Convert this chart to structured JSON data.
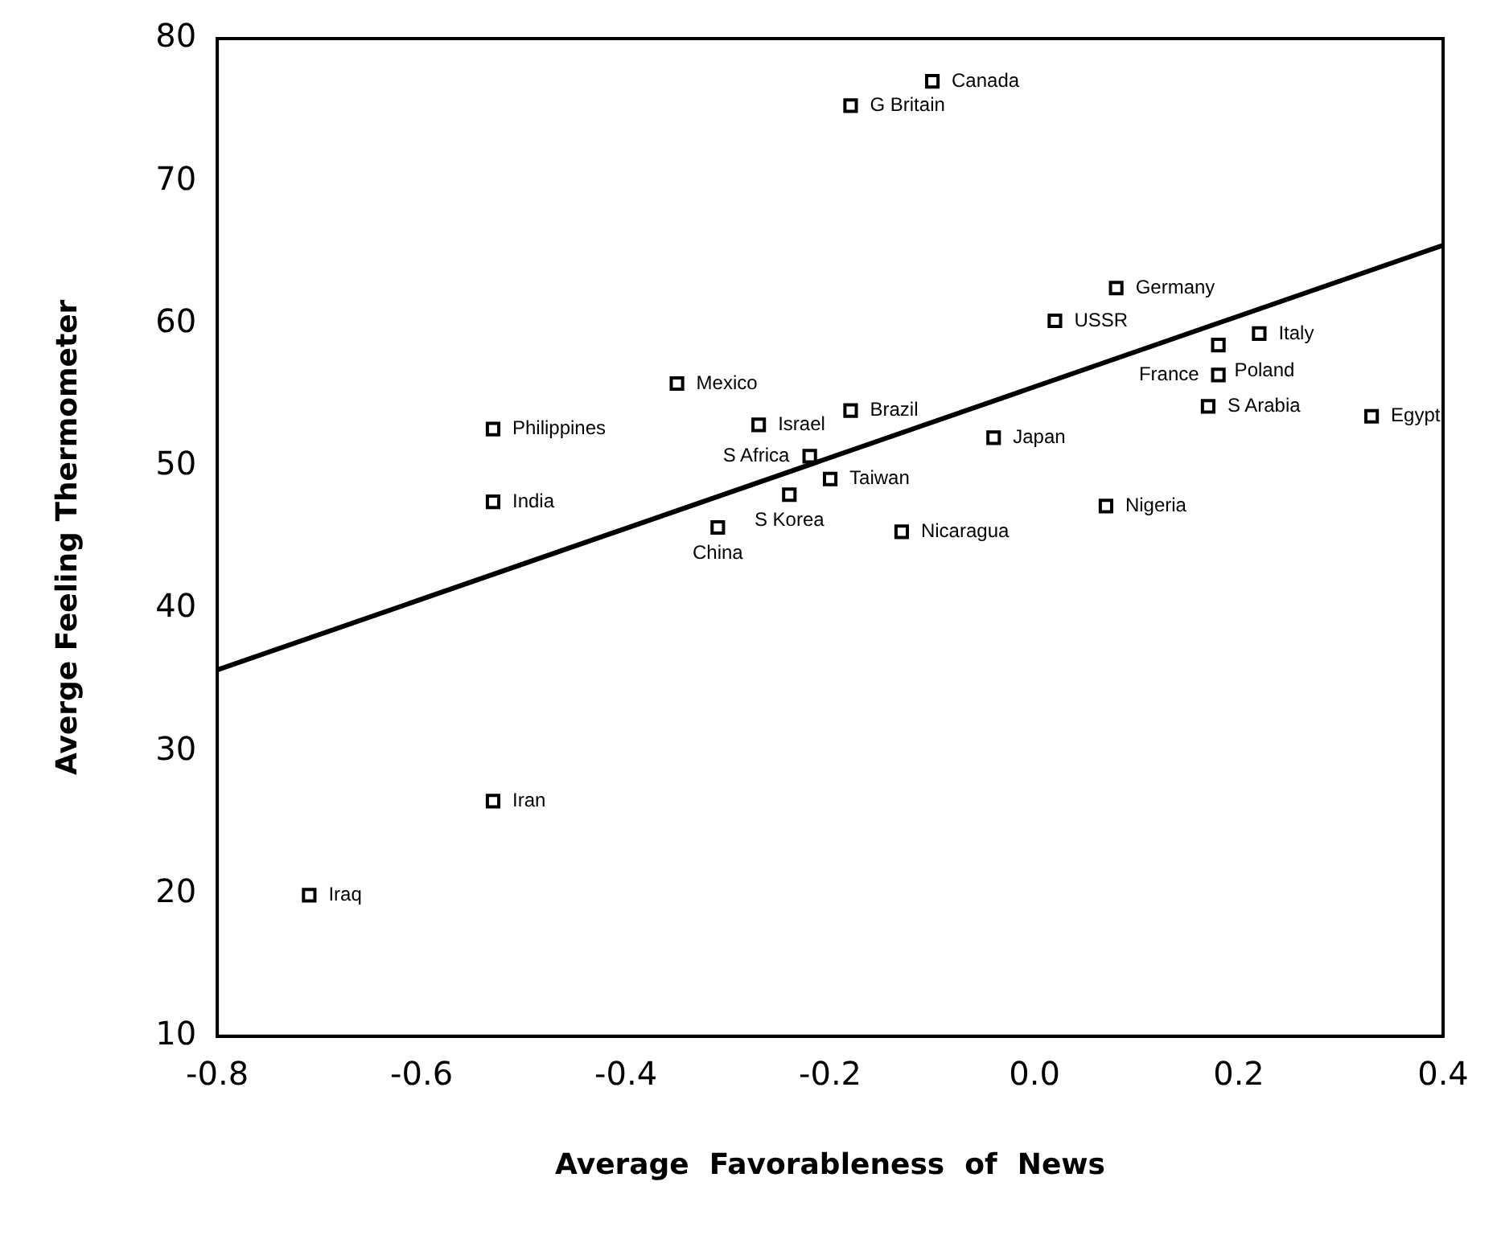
{
  "chart_data": {
    "type": "scatter",
    "xlabel": "Average  Favorableness  of  News",
    "ylabel": "Averge Feeling Thermometer",
    "xlim": [
      -0.8,
      0.4
    ],
    "ylim": [
      10,
      80
    ],
    "xticks": [
      {
        "value": -0.8,
        "label": "-0.8"
      },
      {
        "value": -0.6,
        "label": "-0.6"
      },
      {
        "value": -0.4,
        "label": "-0.4"
      },
      {
        "value": -0.2,
        "label": "-0.2"
      },
      {
        "value": 0,
        "label": "0.0"
      },
      {
        "value": 0.2,
        "label": "0.2"
      },
      {
        "value": 0.4,
        "label": "0.4"
      }
    ],
    "yticks": [
      10,
      20,
      30,
      40,
      50,
      60,
      70,
      80
    ],
    "grid": false,
    "legend": false,
    "marker": "square",
    "series": [
      {
        "type": "scatter",
        "color": "#000000",
        "x": [
          -0.1,
          -0.18,
          0.08,
          0.02,
          0.22,
          0.18,
          0.18,
          0.17,
          0.33,
          -0.04,
          -0.35,
          -0.27,
          -0.18,
          -0.53,
          -0.22,
          -0.2,
          -0.24,
          -0.53,
          0.07,
          -0.13,
          -0.31,
          -0.53,
          -0.71
        ],
        "values": [
          77,
          75.3,
          62.5,
          60.2,
          59.3,
          58.5,
          56.4,
          54.2,
          53.5,
          52,
          55.8,
          52.9,
          53.9,
          52.6,
          50.7,
          49.1,
          48,
          47.5,
          47.2,
          45.4,
          45.7,
          26.5,
          19.9
        ]
      },
      {
        "type": "line",
        "color": "#000000",
        "marker": "none",
        "line_style": "solid",
        "x": [
          -0.8,
          0.4
        ],
        "values": [
          35.7,
          65.5
        ]
      }
    ],
    "annotations": [
      {
        "text": "Canada",
        "x": -0.1,
        "y": 77
      },
      {
        "text": "G Britain",
        "x": -0.18,
        "y": 75.3
      },
      {
        "text": "Germany",
        "x": 0.08,
        "y": 62.5
      },
      {
        "text": "USSR",
        "x": 0.02,
        "y": 60.2
      },
      {
        "text": "Italy",
        "x": 0.22,
        "y": 59.3
      },
      {
        "text": "Poland",
        "x": 0.18,
        "y": 58.5
      },
      {
        "text": "France",
        "x": 0.18,
        "y": 56.4
      },
      {
        "text": "S Arabia",
        "x": 0.17,
        "y": 54.2
      },
      {
        "text": "Egypt",
        "x": 0.33,
        "y": 53.5
      },
      {
        "text": "Japan",
        "x": -0.04,
        "y": 52
      },
      {
        "text": "Mexico",
        "x": -0.35,
        "y": 55.8
      },
      {
        "text": "Israel",
        "x": -0.27,
        "y": 52.9
      },
      {
        "text": "Brazil",
        "x": -0.18,
        "y": 53.9
      },
      {
        "text": "Philippines",
        "x": -0.53,
        "y": 52.6
      },
      {
        "text": "S Africa",
        "x": -0.22,
        "y": 50.7
      },
      {
        "text": "Taiwan",
        "x": -0.2,
        "y": 49.1
      },
      {
        "text": "S Korea",
        "x": -0.24,
        "y": 48
      },
      {
        "text": "India",
        "x": -0.53,
        "y": 47.5
      },
      {
        "text": "Nigeria",
        "x": 0.07,
        "y": 47.2
      },
      {
        "text": "Nicaragua",
        "x": -0.13,
        "y": 45.4
      },
      {
        "text": "China",
        "x": -0.31,
        "y": 45.7
      },
      {
        "text": "Iran",
        "x": -0.53,
        "y": 26.5
      },
      {
        "text": "Iraq",
        "x": -0.71,
        "y": 19.9
      }
    ]
  }
}
